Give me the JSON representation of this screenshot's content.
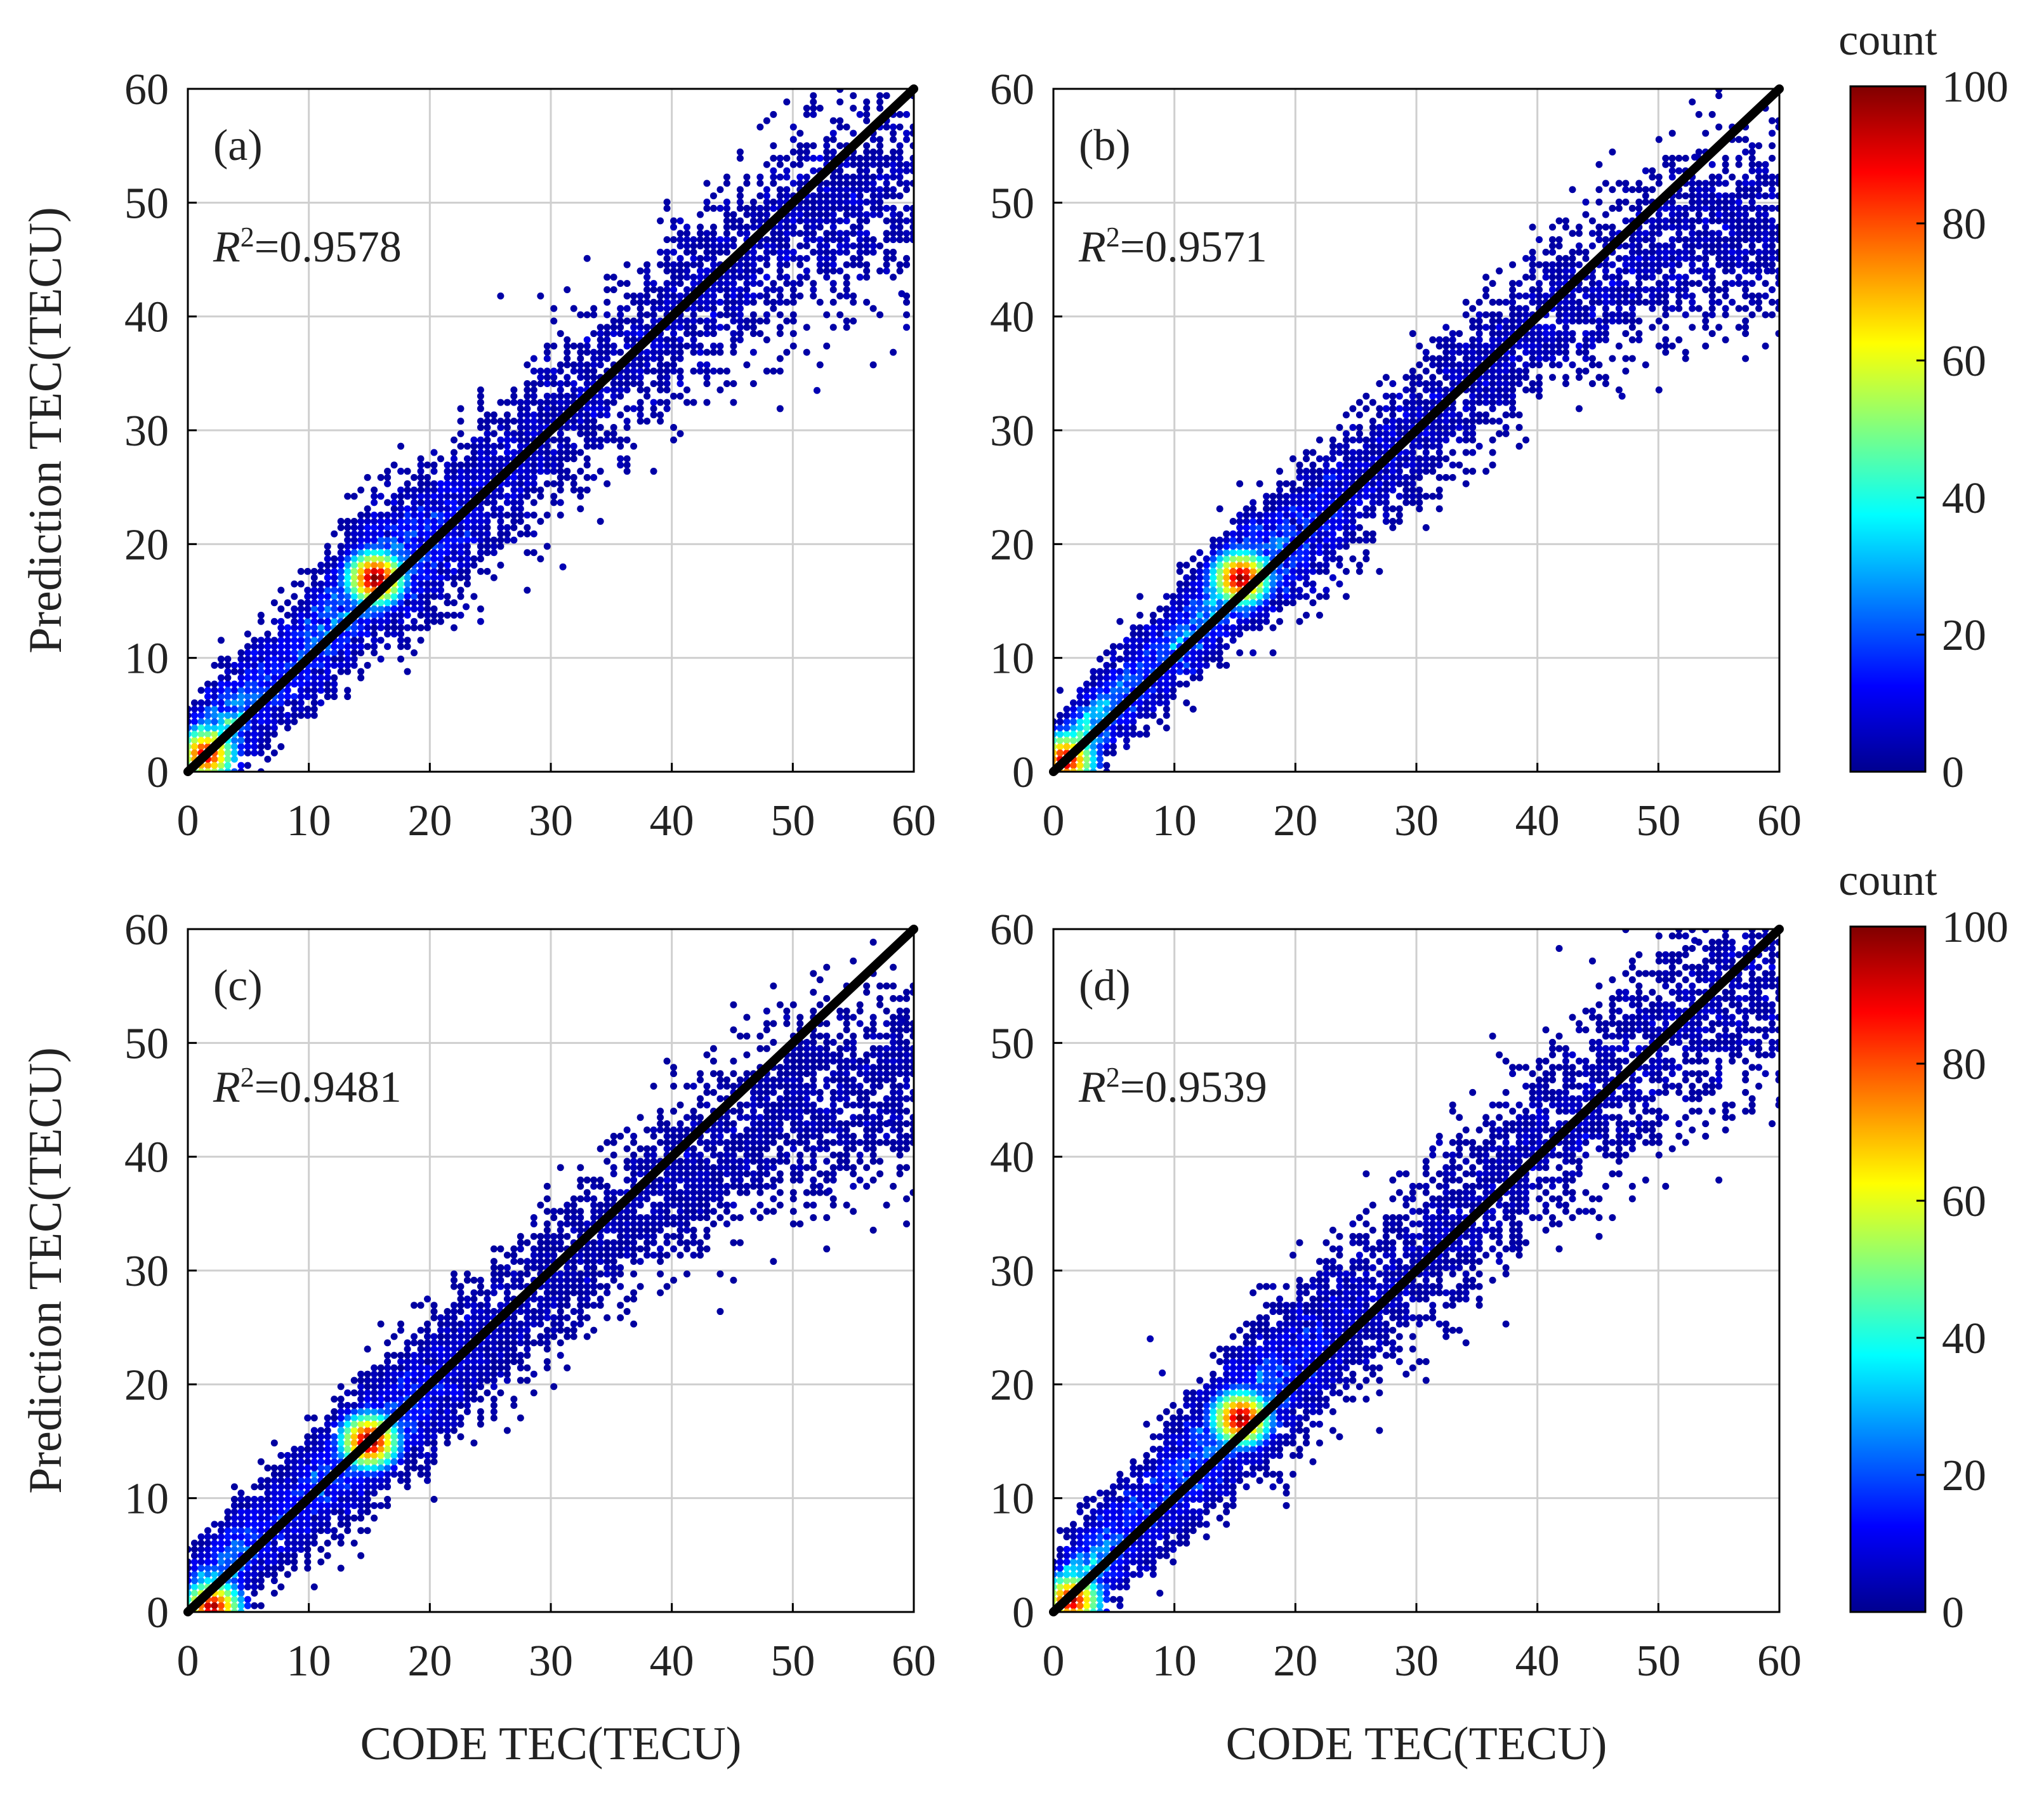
{
  "chart_data": [
    {
      "type": "scatter",
      "panel": "(a)",
      "r2_label": "R",
      "r2_sup": "2",
      "r2_value": "=0.9578",
      "xlabel": "",
      "ylabel": "Prediction TEC(TECU)",
      "xlim": [
        0,
        60
      ],
      "ylim": [
        0,
        60
      ],
      "xticks": [
        0,
        10,
        20,
        30,
        40,
        50,
        60
      ],
      "yticks": [
        0,
        10,
        20,
        30,
        40,
        50,
        60
      ],
      "grid": true,
      "reference_line": [
        [
          0,
          0
        ],
        [
          60,
          60
        ]
      ],
      "density": {
        "points": [
          [
            5,
            6
          ],
          [
            10,
            11
          ],
          [
            15,
            17
          ],
          [
            20,
            20
          ],
          [
            30,
            30
          ],
          [
            40,
            40
          ],
          [
            50,
            48
          ],
          [
            58,
            52
          ]
        ],
        "spread": 3.6,
        "hotspots": [
          {
            "x": 15.5,
            "y": 17,
            "count": 95
          },
          {
            "x": 1.5,
            "y": 1.5,
            "count": 85
          }
        ],
        "outliers": [
          [
            31,
            18
          ],
          [
            23,
            14.5
          ],
          [
            52,
            33.5
          ],
          [
            59,
            42
          ],
          [
            60,
            47
          ]
        ]
      }
    },
    {
      "type": "scatter",
      "panel": "(b)",
      "r2_label": "R",
      "r2_sup": "2",
      "r2_value": "=0.9571",
      "xlabel": "",
      "ylabel": "",
      "xlim": [
        0,
        60
      ],
      "ylim": [
        0,
        60
      ],
      "xticks": [
        0,
        10,
        20,
        30,
        40,
        50,
        60
      ],
      "yticks": [
        0,
        10,
        20,
        30,
        40,
        50,
        60
      ],
      "grid": true,
      "reference_line": [
        [
          0,
          0
        ],
        [
          60,
          60
        ]
      ],
      "density": {
        "points": [
          [
            5,
            6
          ],
          [
            10,
            11
          ],
          [
            15,
            17
          ],
          [
            20,
            20
          ],
          [
            30,
            30
          ],
          [
            40,
            39
          ],
          [
            50,
            46
          ],
          [
            58,
            48
          ]
        ],
        "spread": 3.0,
        "hotspots": [
          {
            "x": 15.5,
            "y": 17,
            "count": 92
          },
          {
            "x": 1,
            "y": 1,
            "count": 88
          }
        ],
        "outliers": [
          [
            47,
            33
          ],
          [
            59,
            44
          ],
          [
            60,
            52
          ],
          [
            53,
            54
          ]
        ]
      }
    },
    {
      "type": "scatter",
      "panel": "(c)",
      "r2_label": "R",
      "r2_sup": "2",
      "r2_value": "=0.9481",
      "xlabel": "CODE TEC(TECU)",
      "ylabel": "Prediction TEC(TECU)",
      "xlim": [
        0,
        60
      ],
      "ylim": [
        0,
        60
      ],
      "xticks": [
        0,
        10,
        20,
        30,
        40,
        50,
        60
      ],
      "yticks": [
        0,
        10,
        20,
        30,
        40,
        50,
        60
      ],
      "grid": true,
      "reference_line": [
        [
          0,
          0
        ],
        [
          60,
          60
        ]
      ],
      "density": {
        "points": [
          [
            5,
            6
          ],
          [
            10,
            10.5
          ],
          [
            15,
            15
          ],
          [
            20,
            19.5
          ],
          [
            30,
            29
          ],
          [
            40,
            38
          ],
          [
            50,
            44
          ],
          [
            58,
            47
          ]
        ],
        "spread": 3.3,
        "hotspots": [
          {
            "x": 15,
            "y": 15,
            "count": 94
          },
          {
            "x": 2,
            "y": 0.4,
            "count": 88
          }
        ],
        "outliers": [
          [
            58,
            43
          ],
          [
            59,
            52
          ],
          [
            53,
            37
          ]
        ]
      }
    },
    {
      "type": "scatter",
      "panel": "(d)",
      "r2_label": "R",
      "r2_sup": "2",
      "r2_value": "=0.9539",
      "xlabel": "CODE TEC(TECU)",
      "ylabel": "",
      "xlim": [
        0,
        60
      ],
      "ylim": [
        0,
        60
      ],
      "xticks": [
        0,
        10,
        20,
        30,
        40,
        50,
        60
      ],
      "yticks": [
        0,
        10,
        20,
        30,
        40,
        50,
        60
      ],
      "grid": true,
      "reference_line": [
        [
          0,
          0
        ],
        [
          60,
          60
        ]
      ],
      "density": {
        "points": [
          [
            5,
            6
          ],
          [
            10,
            11.5
          ],
          [
            15,
            17
          ],
          [
            20,
            21.5
          ],
          [
            30,
            31
          ],
          [
            40,
            41
          ],
          [
            50,
            50
          ],
          [
            58,
            55
          ]
        ],
        "spread": 3.6,
        "hotspots": [
          {
            "x": 15.5,
            "y": 17,
            "count": 93
          },
          {
            "x": 1.5,
            "y": 1,
            "count": 86
          }
        ],
        "outliers": [
          [
            8,
            24
          ],
          [
            9,
            21
          ],
          [
            38,
            32
          ],
          [
            60,
            45
          ],
          [
            53,
            59
          ]
        ]
      }
    }
  ],
  "colorbars": [
    {
      "title": "count",
      "ticks": [
        0,
        20,
        40,
        60,
        80,
        100
      ],
      "range": [
        0,
        100
      ],
      "colormap": [
        "#00008f",
        "#0000ff",
        "#0080ff",
        "#00ffff",
        "#80ff80",
        "#ffff00",
        "#ff8000",
        "#ff0000",
        "#800000"
      ]
    },
    {
      "title": "count",
      "ticks": [
        0,
        20,
        40,
        60,
        80,
        100
      ],
      "range": [
        0,
        100
      ],
      "colormap": [
        "#00008f",
        "#0000ff",
        "#0080ff",
        "#00ffff",
        "#80ff80",
        "#ffff00",
        "#ff8000",
        "#ff0000",
        "#800000"
      ]
    }
  ]
}
